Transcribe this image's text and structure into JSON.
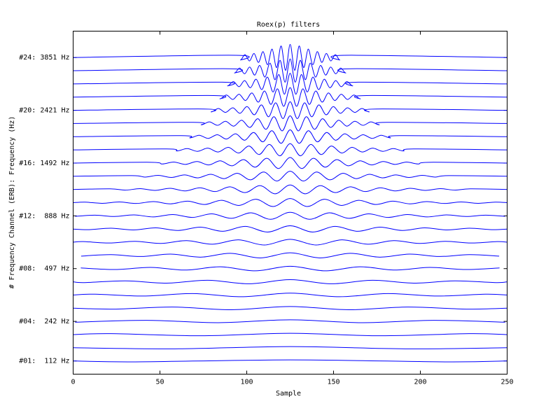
{
  "chart_data": {
    "type": "line",
    "title": "Roex(p) filters",
    "x_label": "Sample",
    "y_label": "# Frequency Channel (ERB): Frequency (Hz)",
    "xlim": [
      0,
      250
    ],
    "ylim": [
      0,
      26
    ],
    "xticks": [
      0,
      50,
      100,
      150,
      200,
      250
    ],
    "yticks": [
      {
        "value": 1,
        "label": "#01:  112 Hz"
      },
      {
        "value": 4,
        "label": "#04:  242 Hz"
      },
      {
        "value": 8,
        "label": "#08:  497 Hz"
      },
      {
        "value": 12,
        "label": "#12:  888 Hz"
      },
      {
        "value": 16,
        "label": "#16: 1492 Hz"
      },
      {
        "value": 20,
        "label": "#20: 2421 Hz"
      },
      {
        "value": 24,
        "label": "#24: 3851 Hz"
      }
    ],
    "color": "#0000ff",
    "series": [
      {
        "x": [
          0,
          35.7,
          125,
          214.3,
          250
        ],
        "values": [
          1,
          0.93,
          1.08,
          0.93,
          1
        ]
      },
      {
        "x": [
          0,
          58.6,
          125,
          191.4,
          250
        ],
        "values": [
          2,
          1.92,
          2.09,
          1.92,
          2
        ]
      },
      {
        "x": [
          0,
          22,
          73.5,
          125,
          176.5,
          228,
          250
        ],
        "values": [
          3,
          3.07,
          2.91,
          3.1,
          2.91,
          3.07,
          3
        ]
      },
      {
        "x": [
          1.1,
          42.4,
          83.7,
          125,
          166.3,
          207.6,
          248.9
        ],
        "values": [
          3.94,
          4.08,
          3.9,
          4.12,
          3.9,
          4.08,
          3.94
        ]
      },
      {
        "x": [
          0,
          23.6,
          57.4,
          91.2,
          125,
          158.8,
          192.6,
          226.4,
          250
        ],
        "values": [
          5,
          4.93,
          5.09,
          4.88,
          5.13,
          4.88,
          5.09,
          4.93,
          5
        ]
      },
      {
        "x": [
          0,
          12.6,
          40.7,
          68.8,
          96.9,
          125,
          153.1,
          181.2,
          209.3,
          237.4,
          250
        ],
        "values": [
          6,
          6.06,
          5.92,
          6.11,
          5.87,
          6.14,
          5.87,
          6.11,
          5.92,
          6.06,
          6
        ]
      },
      {
        "x": [
          0,
          6.5,
          30.2,
          53.9,
          77.6,
          101.3,
          125,
          148.7,
          172.4,
          196.1,
          219.8,
          243.5,
          250
        ],
        "values": [
          7,
          6.94,
          7.07,
          6.9,
          7.12,
          6.85,
          7.16,
          6.85,
          7.12,
          6.9,
          7.07,
          6.94,
          7
        ]
      },
      {
        "x": [
          4.4,
          24.5,
          44.6,
          64.7,
          84.8,
          104.9,
          125,
          145.1,
          165.2,
          185.3,
          205.4,
          225.5,
          245.6
        ],
        "values": [
          8.05,
          7.93,
          8.09,
          7.89,
          8.14,
          7.83,
          8.18,
          7.83,
          8.14,
          7.89,
          8.09,
          7.93,
          8.05
        ]
      },
      {
        "x": [
          4.6,
          21.8,
          39,
          56.2,
          73.4,
          90.6,
          107.8,
          125,
          142.2,
          159.4,
          176.6,
          193.8,
          211,
          228.2,
          245.4
        ],
        "values": [
          8.95,
          9.06,
          8.92,
          9.1,
          8.87,
          9.16,
          8.81,
          9.2,
          8.81,
          9.16,
          8.87,
          9.1,
          8.92,
          9.06,
          8.95
        ]
      },
      {
        "x": [
          0,
          5.8,
          20.7,
          35.6,
          50.5,
          65.4,
          80.3,
          95.2,
          110.1,
          125,
          139.9,
          154.8,
          169.7,
          184.6,
          199.5,
          214.4,
          229.3,
          244.2,
          250
        ],
        "values": [
          10,
          10.05,
          9.94,
          10.07,
          9.91,
          10.12,
          9.85,
          10.18,
          9.79,
          10.22,
          9.79,
          10.18,
          9.85,
          10.12,
          9.91,
          10.07,
          9.94,
          10.05,
          10
        ]
      },
      {
        "x": [
          0,
          8.9,
          21.8,
          34.7,
          47.6,
          60.5,
          73.4,
          86.3,
          99.2,
          112.1,
          125,
          137.9,
          150.8,
          163.7,
          176.6,
          189.5,
          202.4,
          215.3,
          228.2,
          241.1,
          250
        ],
        "values": [
          11,
          10.95,
          11.06,
          10.93,
          11.09,
          10.89,
          11.14,
          10.83,
          11.2,
          10.77,
          11.25,
          10.77,
          11.2,
          10.83,
          11.14,
          10.89,
          11.09,
          10.93,
          11.06,
          10.95,
          11
        ]
      },
      {
        "x": [
          1.25,
          12.5,
          23.75,
          35,
          46.25,
          57.5,
          68.75,
          80,
          91.25,
          102.5,
          113.75,
          125,
          136.25,
          147.5,
          158.75,
          170,
          181.25,
          192.5,
          203.75,
          215,
          226.25,
          237.5,
          248.75
        ],
        "values": [
          11.96,
          12.05,
          11.95,
          12.07,
          11.92,
          12.1,
          11.88,
          12.15,
          11.81,
          12.23,
          11.74,
          12.27,
          11.74,
          12.23,
          11.81,
          12.15,
          11.88,
          12.1,
          11.92,
          12.07,
          11.95,
          12.05,
          11.96
        ]
      },
      {
        "x": [
          0,
          6.9,
          16.8,
          26.6,
          36.4,
          46.3,
          56.1,
          66,
          75.8,
          85.6,
          95.5,
          105.3,
          115.2,
          125,
          134.8,
          144.7,
          154.5,
          164.4,
          174.2,
          184,
          193.9,
          203.7,
          213.6,
          223.4,
          233.2,
          243.1,
          250
        ],
        "values": [
          13,
          13.04,
          12.95,
          13.05,
          12.94,
          13.08,
          12.91,
          13.11,
          12.86,
          13.18,
          12.79,
          13.26,
          12.71,
          13.31,
          12.71,
          13.26,
          12.79,
          13.18,
          12.86,
          13.11,
          12.91,
          13.08,
          12.94,
          13.05,
          12.95,
          13.04,
          13
        ]
      },
      {
        "x": [
          0,
          21.3,
          30,
          38.6,
          47.2,
          55.9,
          64.5,
          73.2,
          81.8,
          90.4,
          99.1,
          107.7,
          116.4,
          125,
          133.6,
          142.3,
          150.9,
          159.6,
          168.2,
          176.8,
          185.5,
          194.1,
          202.8,
          211.4,
          220,
          228.7,
          250
        ],
        "values": [
          14,
          14.05,
          13.95,
          14.06,
          13.93,
          14.09,
          13.89,
          14.13,
          13.84,
          14.2,
          13.76,
          14.29,
          13.67,
          14.34,
          13.67,
          14.29,
          13.76,
          14.2,
          13.84,
          14.13,
          13.89,
          14.09,
          13.93,
          14.06,
          13.95,
          14.05,
          14
        ]
      },
      {
        "x": [
          0,
          33.8,
          41.4,
          49,
          56.6,
          64.2,
          71.8,
          79.4,
          87,
          94.6,
          102.2,
          109.8,
          117.4,
          125,
          132.6,
          140.2,
          147.8,
          155.4,
          163,
          170.6,
          178.2,
          185.8,
          193.4,
          201,
          208.6,
          216.2,
          250
        ],
        "values": [
          15,
          15.05,
          14.94,
          15.07,
          14.91,
          15.1,
          14.88,
          15.15,
          14.82,
          15.23,
          14.73,
          15.32,
          14.64,
          15.38,
          14.64,
          15.32,
          14.73,
          15.23,
          14.82,
          15.15,
          14.88,
          15.1,
          14.91,
          15.07,
          14.94,
          15.05,
          15
        ]
      },
      {
        "x": [
          0,
          44.6,
          51.3,
          58,
          64.7,
          71.4,
          78.1,
          84.8,
          91.5,
          98.2,
          104.9,
          111.6,
          118.3,
          125,
          131.7,
          138.4,
          145.1,
          151.8,
          158.5,
          165.2,
          171.9,
          178.6,
          185.3,
          192,
          198.7,
          205.4,
          250
        ],
        "values": [
          16,
          16.06,
          15.93,
          16.08,
          15.9,
          16.12,
          15.86,
          16.17,
          15.79,
          16.26,
          15.69,
          16.36,
          15.59,
          16.42,
          15.59,
          16.36,
          15.69,
          16.26,
          15.79,
          16.17,
          15.86,
          16.12,
          15.9,
          16.08,
          15.93,
          16.06,
          16
        ]
      },
      {
        "x": [
          0,
          53.8,
          59.8,
          65.7,
          71.6,
          77.6,
          83.5,
          89.4,
          95.4,
          101.3,
          107.2,
          113.1,
          119.1,
          125,
          130.9,
          136.9,
          142.8,
          148.7,
          154.7,
          160.6,
          166.5,
          172.4,
          178.4,
          184.3,
          190.2,
          196.2,
          250
        ],
        "values": [
          17,
          17.07,
          16.92,
          17.1,
          16.89,
          17.13,
          16.84,
          17.19,
          16.76,
          17.29,
          16.65,
          17.41,
          16.55,
          17.47,
          16.55,
          17.41,
          16.65,
          17.29,
          16.76,
          17.19,
          16.84,
          17.13,
          16.89,
          17.1,
          16.92,
          17.07,
          17
        ]
      },
      {
        "x": [
          0,
          62.1,
          67.4,
          72.6,
          77.8,
          83.1,
          88.3,
          93.6,
          98.8,
          104,
          109.3,
          114.5,
          119.8,
          125,
          130.2,
          135.5,
          140.7,
          146,
          151.2,
          156.4,
          161.7,
          166.9,
          172.2,
          177.4,
          182.6,
          187.9,
          250
        ],
        "values": [
          18,
          18.08,
          17.91,
          18.11,
          17.87,
          18.15,
          17.82,
          18.22,
          17.73,
          18.32,
          17.61,
          18.45,
          17.5,
          18.52,
          17.5,
          18.45,
          17.61,
          18.32,
          17.73,
          18.22,
          17.82,
          18.15,
          17.87,
          18.11,
          17.91,
          18.08,
          18
        ]
      },
      {
        "x": [
          0,
          69.2,
          73.9,
          78.5,
          83.2,
          87.8,
          92.5,
          97.1,
          101.8,
          106.4,
          111.1,
          115.7,
          120.4,
          125,
          129.7,
          134.3,
          139,
          143.6,
          148.3,
          152.9,
          157.6,
          162.2,
          166.9,
          171.5,
          176.2,
          180.8,
          250
        ],
        "values": [
          19,
          19.09,
          18.9,
          19.12,
          18.86,
          19.17,
          18.8,
          19.25,
          18.7,
          19.36,
          18.56,
          19.51,
          18.44,
          19.58,
          18.44,
          19.51,
          18.56,
          19.36,
          18.7,
          19.25,
          18.8,
          19.17,
          18.86,
          19.12,
          18.9,
          19.09,
          19
        ]
      },
      {
        "x": [
          0,
          75.4,
          79.6,
          83.7,
          87.8,
          92,
          96.1,
          100.2,
          104.4,
          108.5,
          112.6,
          116.7,
          120.9,
          125,
          129.1,
          133.3,
          137.4,
          141.5,
          145.7,
          149.8,
          153.9,
          158,
          162.2,
          166.3,
          170.4,
          174.6,
          250
        ],
        "values": [
          20,
          20.1,
          19.88,
          20.14,
          19.84,
          20.19,
          19.77,
          20.28,
          19.66,
          20.41,
          19.51,
          20.57,
          19.37,
          20.65,
          19.37,
          20.57,
          19.51,
          20.41,
          19.66,
          20.28,
          19.77,
          20.19,
          19.84,
          20.14,
          19.88,
          20.1,
          20
        ]
      },
      {
        "x": [
          0,
          81,
          84.6,
          88.3,
          92,
          95.6,
          99.3,
          103,
          106.7,
          110.3,
          114,
          117.7,
          121.3,
          125,
          128.7,
          132.3,
          136,
          139.7,
          143.4,
          147,
          150.7,
          154.4,
          158,
          161.7,
          165.4,
          169,
          250
        ],
        "values": [
          21,
          21.12,
          20.87,
          21.16,
          20.82,
          21.22,
          20.74,
          21.32,
          20.62,
          21.46,
          20.45,
          21.63,
          20.3,
          21.72,
          20.3,
          21.63,
          20.45,
          21.46,
          20.62,
          21.32,
          20.74,
          21.22,
          20.82,
          21.16,
          20.87,
          21.12,
          21
        ]
      },
      {
        "x": [
          0,
          85.8,
          89,
          92.3,
          95.6,
          98.8,
          102.1,
          105.4,
          108.7,
          111.9,
          115.2,
          118.5,
          121.7,
          125,
          128.3,
          131.5,
          134.8,
          138.1,
          141.4,
          144.6,
          147.9,
          151.2,
          154.4,
          157.7,
          161,
          164.2,
          250
        ],
        "values": [
          22,
          22.13,
          21.85,
          22.18,
          21.79,
          22.25,
          21.71,
          22.36,
          21.57,
          22.52,
          21.39,
          22.71,
          21.22,
          22.81,
          21.22,
          22.71,
          21.39,
          22.52,
          21.57,
          22.36,
          21.71,
          22.25,
          21.79,
          22.18,
          21.85,
          22.13,
          22
        ]
      },
      {
        "x": [
          0,
          90.1,
          93,
          95.9,
          98.8,
          101.7,
          104.6,
          107.5,
          110.5,
          113.4,
          116.3,
          119.2,
          122.1,
          125,
          127.9,
          130.8,
          133.7,
          136.6,
          139.6,
          142.5,
          145.4,
          148.3,
          151.2,
          154.1,
          157,
          159.9,
          250
        ],
        "values": [
          23,
          23.15,
          22.83,
          23.2,
          22.77,
          23.28,
          22.67,
          23.4,
          22.52,
          23.58,
          22.32,
          23.79,
          22.13,
          23.9,
          22.13,
          23.79,
          22.32,
          23.58,
          22.52,
          23.4,
          22.67,
          23.28,
          22.77,
          23.2,
          22.83,
          23.15,
          23
        ]
      },
      {
        "x": [
          0,
          93.8,
          96.4,
          99,
          101.6,
          104.2,
          106.8,
          109.4,
          112,
          114.6,
          117.2,
          119.8,
          122.4,
          125,
          127.6,
          130.2,
          132.8,
          135.4,
          138,
          140.6,
          143.2,
          145.8,
          148.4,
          151,
          153.6,
          156.2,
          250
        ],
        "values": [
          24,
          24.17,
          23.81,
          24.22,
          23.74,
          24.31,
          23.63,
          24.45,
          23.46,
          24.64,
          23.24,
          24.88,
          23.03,
          25,
          23.03,
          24.88,
          23.24,
          24.64,
          23.46,
          24.45,
          23.63,
          24.31,
          23.74,
          24.22,
          23.81,
          24.17,
          24
        ]
      }
    ]
  }
}
